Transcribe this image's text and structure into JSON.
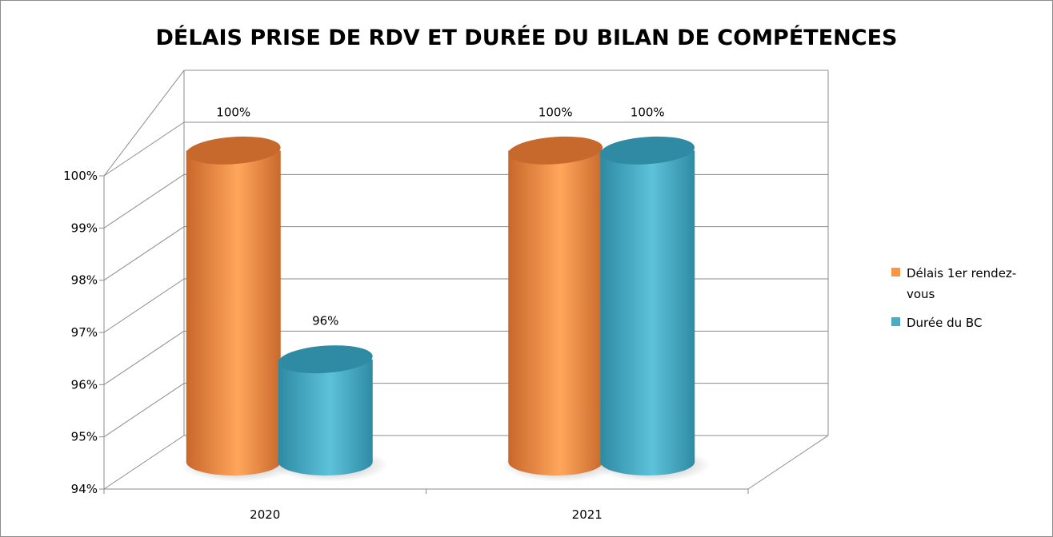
{
  "chart_data": {
    "type": "bar",
    "title": "DÉLAIS PRISE DE RDV ET DURÉE DU BILAN DE COMPÉTENCES",
    "xlabel": "",
    "ylabel": "",
    "categories": [
      "2020",
      "2021"
    ],
    "series": [
      {
        "name": "Délais 1er rendez-vous",
        "name_lines": [
          "Délais 1er rendez-",
          "vous"
        ],
        "values": [
          100,
          100
        ],
        "labels": [
          "100%",
          "100%"
        ],
        "color": "#f79646"
      },
      {
        "name": "Durée du BC",
        "name_lines": [
          "Durée du BC"
        ],
        "values": [
          96,
          100
        ],
        "labels": [
          "96%",
          "100%"
        ],
        "color": "#4bacc6"
      }
    ],
    "ylim": [
      94,
      100
    ],
    "y_ticks": [
      "94%",
      "95%",
      "96%",
      "97%",
      "98%",
      "99%",
      "100%"
    ],
    "grid": true,
    "style": "3d-cylinder",
    "legend_position": "right"
  }
}
